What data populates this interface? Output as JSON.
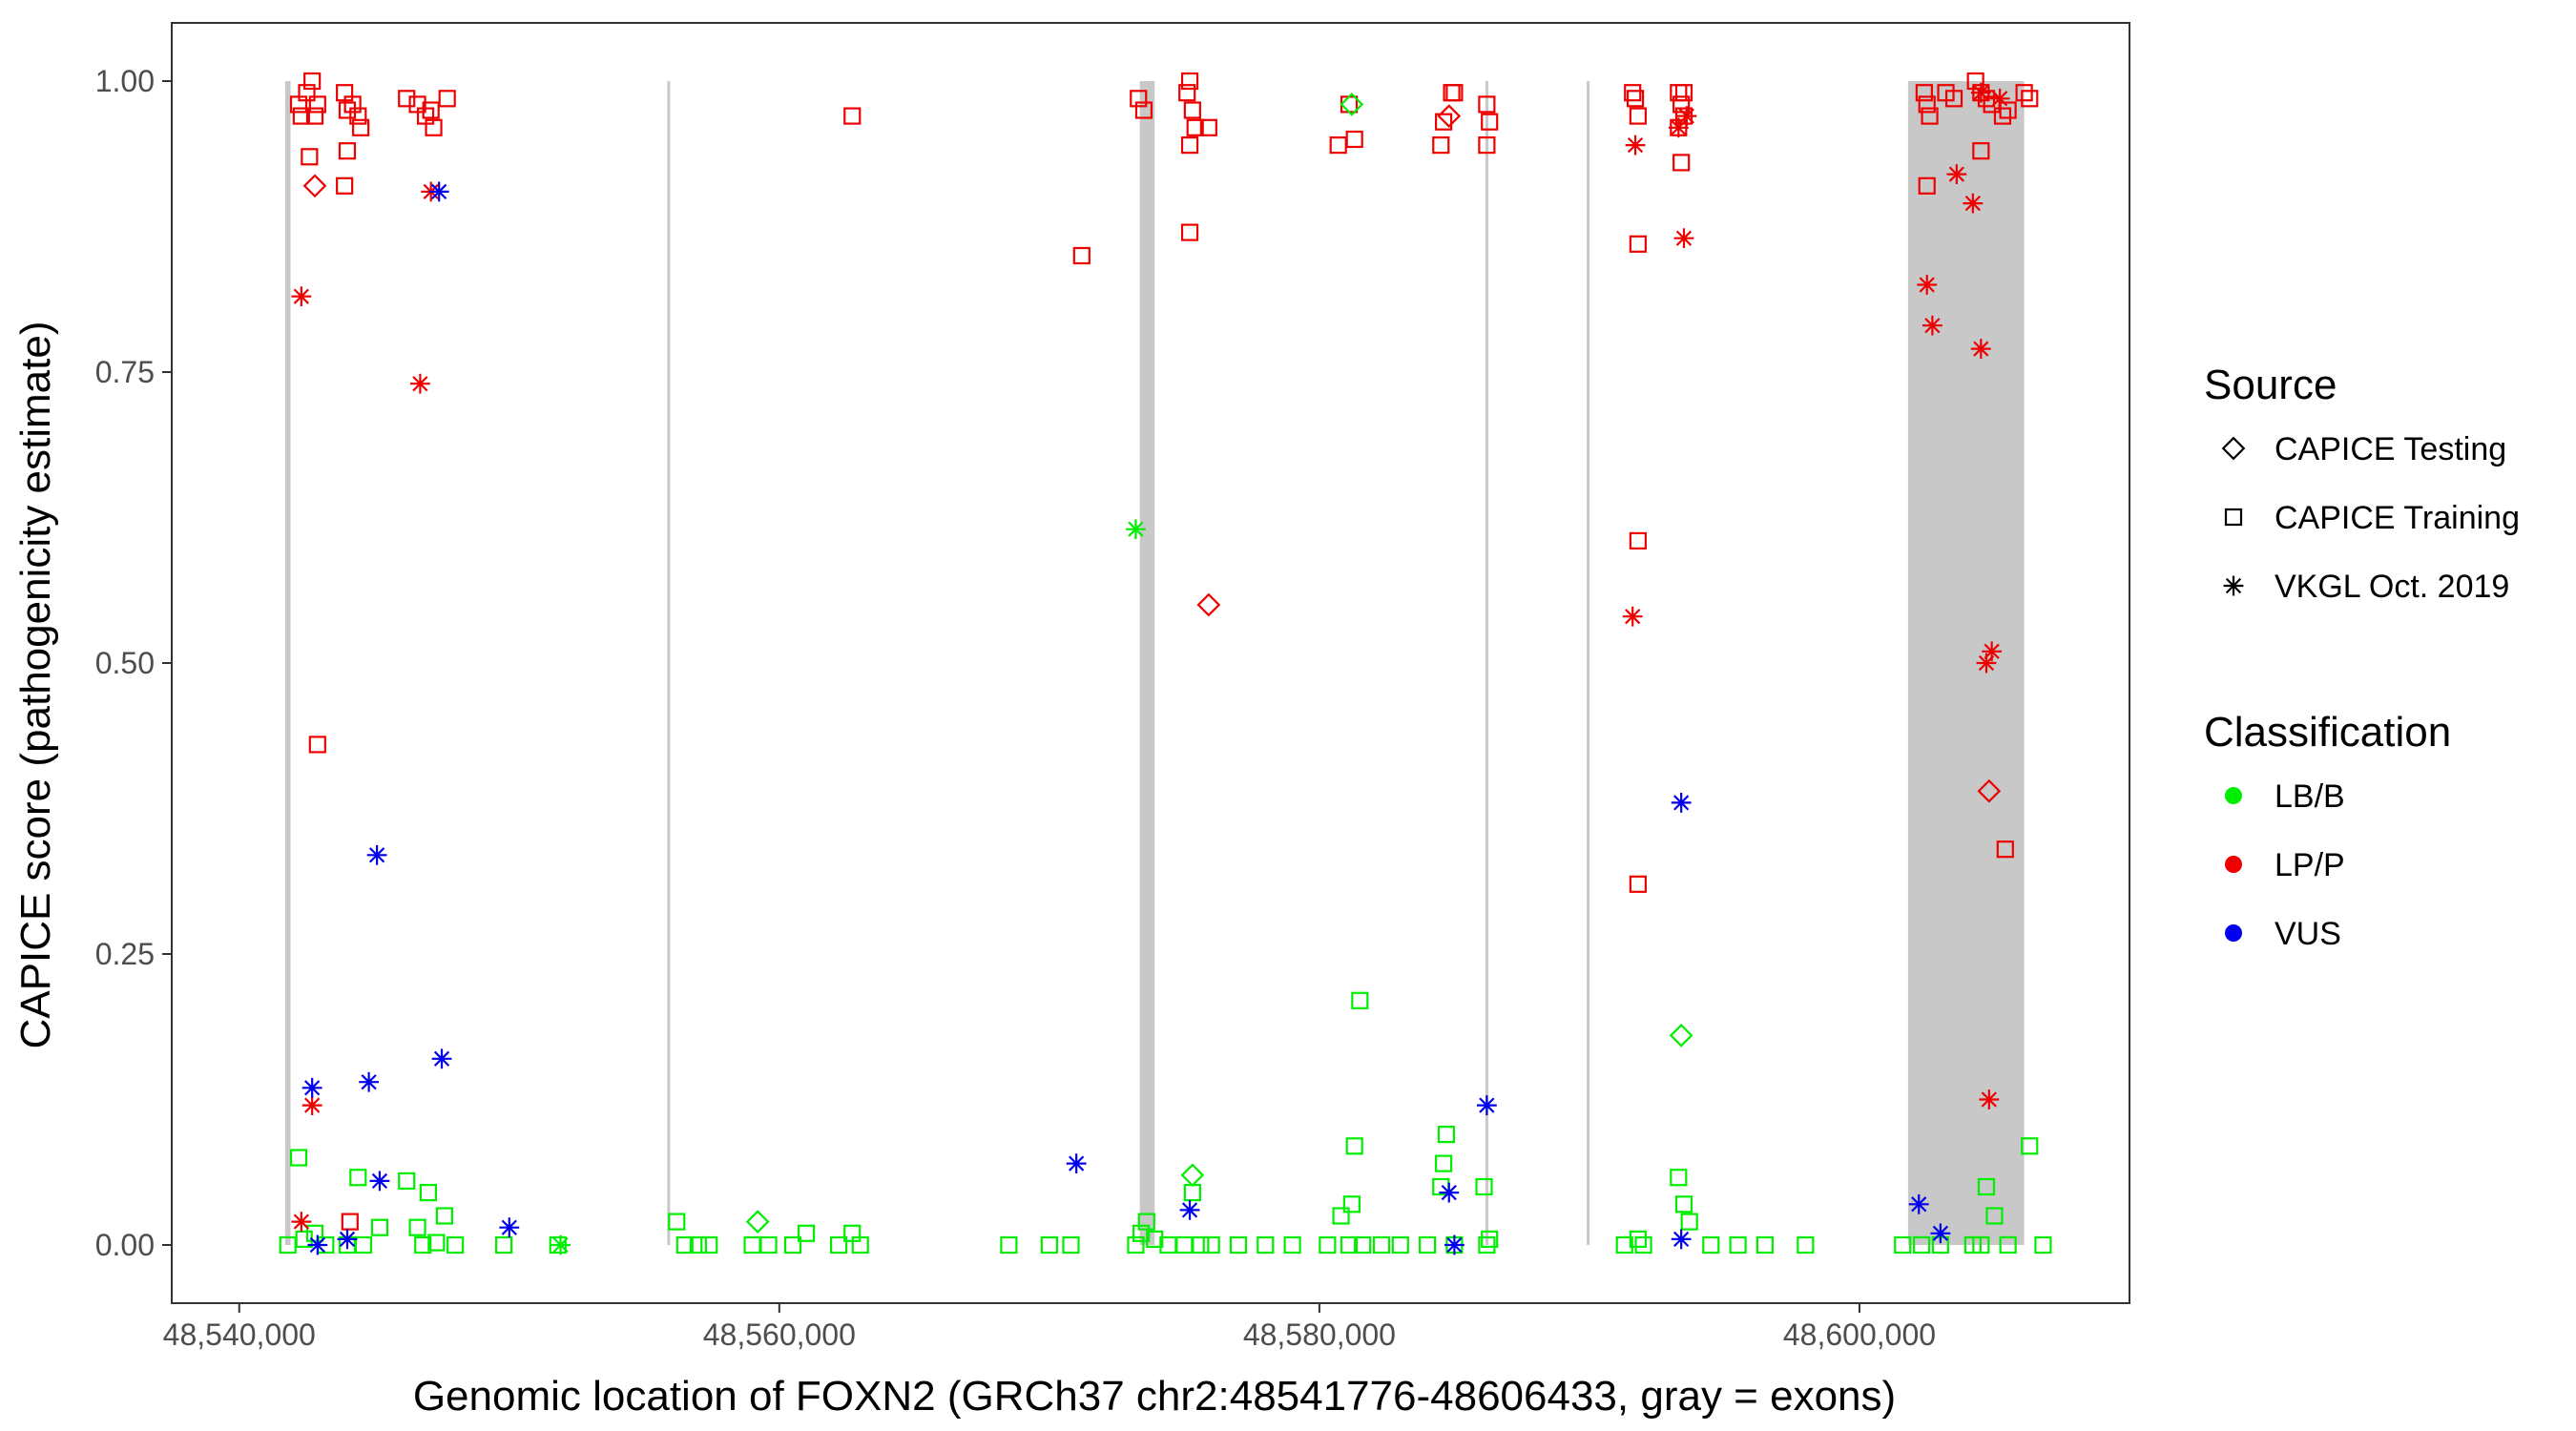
{
  "chart_data": {
    "type": "scatter",
    "title": "",
    "xlabel": "Genomic location of FOXN2 (GRCh37 chr2:48541776-48606433, gray = exons)",
    "ylabel": "CAPICE score (pathogenicity estimate)",
    "xlim": [
      48537500,
      48610000
    ],
    "ylim": [
      -0.05,
      1.05
    ],
    "x_ticks": [
      48540000,
      48560000,
      48580000,
      48600000
    ],
    "x_tick_labels": [
      "48,540,000",
      "48,560,000",
      "48,580,000",
      "48,600,000"
    ],
    "y_ticks": [
      0,
      0.25,
      0.5,
      0.75,
      1.0
    ],
    "y_tick_labels": [
      "0.00",
      "0.25",
      "0.50",
      "0.75",
      "1.00"
    ],
    "grid": false,
    "exons": [
      [
        48541700,
        48541900
      ],
      [
        48555850,
        48555950
      ],
      [
        48573350,
        48573900
      ],
      [
        48586150,
        48586250
      ],
      [
        48589900,
        48590000
      ],
      [
        48601800,
        48606100
      ]
    ],
    "legend_position": "right",
    "source_legend": {
      "title": "Source",
      "entries": [
        {
          "label": "CAPICE Testing",
          "shape": "diamond"
        },
        {
          "label": "CAPICE Training",
          "shape": "square"
        },
        {
          "label": "VKGL Oct. 2019",
          "shape": "asterisk"
        }
      ]
    },
    "class_legend": {
      "title": "Classification",
      "entries": [
        {
          "label": "LB/B",
          "color": "#00ee00"
        },
        {
          "label": "LP/P",
          "color": "#ee0000"
        },
        {
          "label": "VUS",
          "color": "#0000ee"
        }
      ]
    },
    "series": [
      {
        "source": "CAPICE Training",
        "classification": "LP/P",
        "points": [
          [
            48542200,
            0.98
          ],
          [
            48542300,
            0.97
          ],
          [
            48542500,
            0.99
          ],
          [
            48542700,
            1.0
          ],
          [
            48542800,
            0.97
          ],
          [
            48542900,
            0.98
          ],
          [
            48542600,
            0.935
          ],
          [
            48542900,
            0.43
          ],
          [
            48543900,
            0.99
          ],
          [
            48544000,
            0.975
          ],
          [
            48544200,
            0.98
          ],
          [
            48544400,
            0.97
          ],
          [
            48544500,
            0.96
          ],
          [
            48544000,
            0.94
          ],
          [
            48543900,
            0.91
          ],
          [
            48544100,
            0.02
          ],
          [
            48546200,
            0.985
          ],
          [
            48546600,
            0.98
          ],
          [
            48546900,
            0.97
          ],
          [
            48547200,
            0.96
          ],
          [
            48547700,
            0.985
          ],
          [
            48547100,
            0.975
          ],
          [
            48562700,
            0.97
          ],
          [
            48571200,
            0.85
          ],
          [
            48573300,
            0.985
          ],
          [
            48573500,
            0.975
          ],
          [
            48575200,
            1.0
          ],
          [
            48575100,
            0.99
          ],
          [
            48575300,
            0.975
          ],
          [
            48575400,
            0.96
          ],
          [
            48575200,
            0.945
          ],
          [
            48575200,
            0.87
          ],
          [
            48575900,
            0.96
          ],
          [
            48580700,
            0.945
          ],
          [
            48581100,
            0.98
          ],
          [
            48581300,
            0.95
          ],
          [
            48584500,
            0.945
          ],
          [
            48584600,
            0.965
          ],
          [
            48584900,
            0.99
          ],
          [
            48585000,
            0.99
          ],
          [
            48586200,
            0.98
          ],
          [
            48586300,
            0.965
          ],
          [
            48586200,
            0.945
          ],
          [
            48591600,
            0.99
          ],
          [
            48591700,
            0.985
          ],
          [
            48591800,
            0.97
          ],
          [
            48591800,
            0.86
          ],
          [
            48591800,
            0.605
          ],
          [
            48591800,
            0.31
          ],
          [
            48593300,
            0.99
          ],
          [
            48593400,
            0.98
          ],
          [
            48593500,
            0.97
          ],
          [
            48593300,
            0.96
          ],
          [
            48593400,
            0.93
          ],
          [
            48593500,
            0.99
          ],
          [
            48602400,
            0.99
          ],
          [
            48602500,
            0.98
          ],
          [
            48602600,
            0.97
          ],
          [
            48602500,
            0.91
          ],
          [
            48603200,
            0.99
          ],
          [
            48603500,
            0.985
          ],
          [
            48604300,
            1.0
          ],
          [
            48604500,
            0.99
          ],
          [
            48604700,
            0.985
          ],
          [
            48604900,
            0.98
          ],
          [
            48604500,
            0.94
          ],
          [
            48605300,
            0.97
          ],
          [
            48605500,
            0.975
          ],
          [
            48606300,
            0.985
          ],
          [
            48606100,
            0.99
          ],
          [
            48605400,
            0.34
          ]
        ]
      },
      {
        "source": "CAPICE Training",
        "classification": "LB/B",
        "points": [
          [
            48541800,
            0.0
          ],
          [
            48542200,
            0.075
          ],
          [
            48542400,
            0.005
          ],
          [
            48542800,
            0.01
          ],
          [
            48543200,
            0.0
          ],
          [
            48544000,
            0.0
          ],
          [
            48544600,
            0.0
          ],
          [
            48544400,
            0.058
          ],
          [
            48545200,
            0.015
          ],
          [
            48546200,
            0.055
          ],
          [
            48546600,
            0.015
          ],
          [
            48546800,
            0.0
          ],
          [
            48547000,
            0.045
          ],
          [
            48547300,
            0.002
          ],
          [
            48547600,
            0.025
          ],
          [
            48548000,
            0.0
          ],
          [
            48549800,
            0.0
          ],
          [
            48551800,
            0.0
          ],
          [
            48556200,
            0.02
          ],
          [
            48556500,
            0.0
          ],
          [
            48557000,
            0.0
          ],
          [
            48557400,
            0.0
          ],
          [
            48559000,
            0.0
          ],
          [
            48559600,
            0.0
          ],
          [
            48560500,
            0.0
          ],
          [
            48561000,
            0.01
          ],
          [
            48562200,
            0.0
          ],
          [
            48562700,
            0.01
          ],
          [
            48563000,
            0.0
          ],
          [
            48568500,
            0.0
          ],
          [
            48570000,
            0.0
          ],
          [
            48570800,
            0.0
          ],
          [
            48573200,
            0.0
          ],
          [
            48573400,
            0.01
          ],
          [
            48573600,
            0.02
          ],
          [
            48573900,
            0.005
          ],
          [
            48574400,
            0.0
          ],
          [
            48575000,
            0.0
          ],
          [
            48575300,
            0.045
          ],
          [
            48575600,
            0.0
          ],
          [
            48576000,
            0.0
          ],
          [
            48577000,
            0.0
          ],
          [
            48578000,
            0.0
          ],
          [
            48579000,
            0.0
          ],
          [
            48580300,
            0.0
          ],
          [
            48580800,
            0.025
          ],
          [
            48581100,
            0.0
          ],
          [
            48581200,
            0.035
          ],
          [
            48581300,
            0.085
          ],
          [
            48581500,
            0.21
          ],
          [
            48581600,
            0.0
          ],
          [
            48582300,
            0.0
          ],
          [
            48583000,
            0.0
          ],
          [
            48584000,
            0.0
          ],
          [
            48584500,
            0.05
          ],
          [
            48584600,
            0.07
          ],
          [
            48584700,
            0.095
          ],
          [
            48585000,
            0.0
          ],
          [
            48586100,
            0.05
          ],
          [
            48586200,
            0.0
          ],
          [
            48586300,
            0.005
          ],
          [
            48591300,
            0.0
          ],
          [
            48591800,
            0.005
          ],
          [
            48592000,
            0.0
          ],
          [
            48593300,
            0.058
          ],
          [
            48593500,
            0.035
          ],
          [
            48593700,
            0.02
          ],
          [
            48594500,
            0.0
          ],
          [
            48595500,
            0.0
          ],
          [
            48596500,
            0.0
          ],
          [
            48598000,
            0.0
          ],
          [
            48601600,
            0.0
          ],
          [
            48602300,
            0.0
          ],
          [
            48603000,
            0.0
          ],
          [
            48604200,
            0.0
          ],
          [
            48604500,
            0.0
          ],
          [
            48604700,
            0.05
          ],
          [
            48605000,
            0.025
          ],
          [
            48605500,
            0.0
          ],
          [
            48606300,
            0.085
          ],
          [
            48606800,
            0.0
          ]
        ]
      },
      {
        "source": "CAPICE Testing",
        "classification": "LP/P",
        "points": [
          [
            48542800,
            0.91
          ],
          [
            48575900,
            0.55
          ],
          [
            48584800,
            0.97
          ],
          [
            48604800,
            0.39
          ]
        ]
      },
      {
        "source": "CAPICE Testing",
        "classification": "LB/B",
        "points": [
          [
            48559200,
            0.02
          ],
          [
            48575300,
            0.06
          ],
          [
            48581200,
            0.98
          ],
          [
            48593400,
            0.18
          ]
        ]
      },
      {
        "source": "VKGL Oct. 2019",
        "classification": "LP/P",
        "points": [
          [
            48542300,
            0.815
          ],
          [
            48542300,
            0.02
          ],
          [
            48542700,
            0.12
          ],
          [
            48546700,
            0.74
          ],
          [
            48547100,
            0.905
          ],
          [
            48591700,
            0.945
          ],
          [
            48591600,
            0.54
          ],
          [
            48593500,
            0.865
          ],
          [
            48593600,
            0.97
          ],
          [
            48593300,
            0.96
          ],
          [
            48602500,
            0.825
          ],
          [
            48602700,
            0.79
          ],
          [
            48603600,
            0.92
          ],
          [
            48604200,
            0.895
          ],
          [
            48604500,
            0.77
          ],
          [
            48604700,
            0.5
          ],
          [
            48604900,
            0.51
          ],
          [
            48604800,
            0.125
          ],
          [
            48604500,
            0.99
          ],
          [
            48605200,
            0.985
          ]
        ]
      },
      {
        "source": "VKGL Oct. 2019",
        "classification": "LB/B",
        "points": [
          [
            48573200,
            0.615
          ],
          [
            48551900,
            0.0
          ]
        ]
      },
      {
        "source": "VKGL Oct. 2019",
        "classification": "VUS",
        "points": [
          [
            48542700,
            0.135
          ],
          [
            48542900,
            0.0
          ],
          [
            48544000,
            0.005
          ],
          [
            48545100,
            0.335
          ],
          [
            48544800,
            0.14
          ],
          [
            48545200,
            0.055
          ],
          [
            48547400,
            0.905
          ],
          [
            48547500,
            0.16
          ],
          [
            48550000,
            0.015
          ],
          [
            48571000,
            0.07
          ],
          [
            48575200,
            0.03
          ],
          [
            48584800,
            0.045
          ],
          [
            48585000,
            0.0
          ],
          [
            48586200,
            0.12
          ],
          [
            48593400,
            0.38
          ],
          [
            48593400,
            0.005
          ],
          [
            48602200,
            0.035
          ],
          [
            48603000,
            0.01
          ]
        ]
      }
    ]
  }
}
